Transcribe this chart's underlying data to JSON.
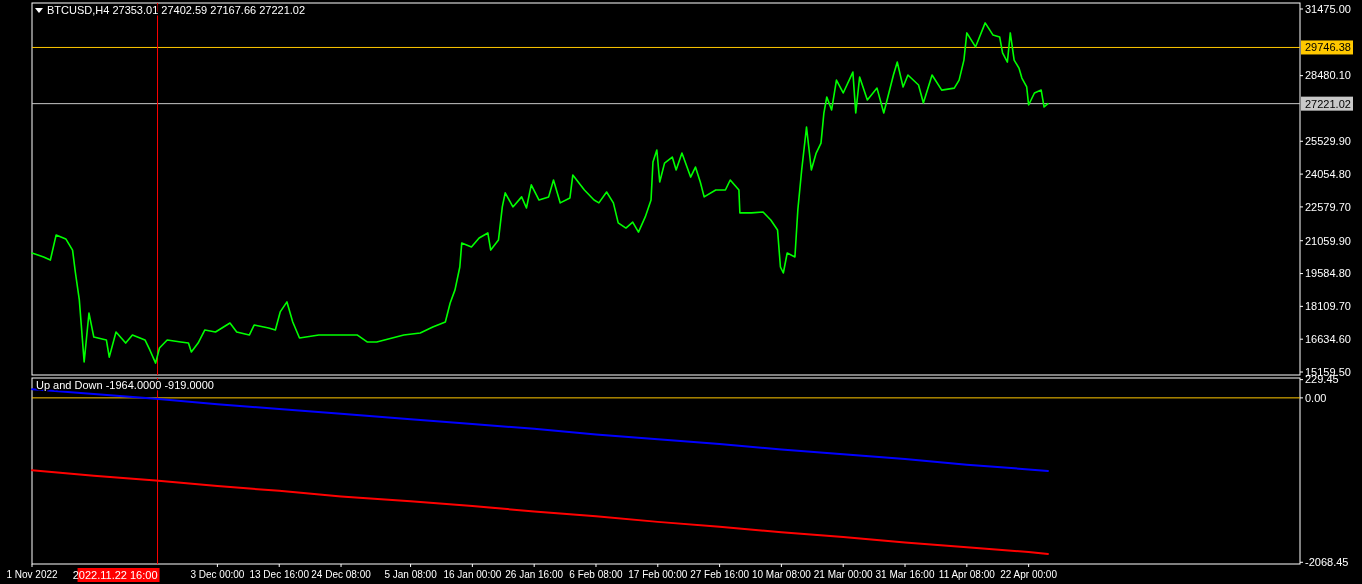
{
  "chart_data": [
    {
      "type": "line",
      "title": "BTCUSD,H4  27353.01 27402.59 27167.66 27221.02",
      "tick_labels": "y",
      "grid": false,
      "marker": "none",
      "line_style": "solid",
      "xlim": [
        "2022-11-01T00:00",
        "2023-06-07T20:00"
      ],
      "ylim": [
        15025,
        31745
      ],
      "yticks": [
        {
          "value": 31475,
          "label": "31475.00"
        },
        {
          "value": 28480.1,
          "label": "28480.10"
        },
        {
          "value": 25529.9,
          "label": "25529.90"
        },
        {
          "value": 24054.8,
          "label": "24054.80"
        },
        {
          "value": 22579.7,
          "label": "22579.70"
        },
        {
          "value": 21059.9,
          "label": "21059.90"
        },
        {
          "value": 19584.8,
          "label": "19584.80"
        },
        {
          "value": 18109.7,
          "label": "18109.70"
        },
        {
          "value": 16634.6,
          "label": "16634.60"
        },
        {
          "value": 15159.5,
          "label": "15159.50"
        }
      ],
      "ref_lines": [
        {
          "axis": "y",
          "value": 29746.38,
          "label": "29746.38",
          "color": "#ffc800"
        },
        {
          "axis": "y",
          "value": 27221.02,
          "label": "27221.02",
          "color": "#c8c8c8"
        },
        {
          "axis": "x",
          "value": "2022-11-22T16:00",
          "color": "#ff0000"
        }
      ],
      "series": [
        {
          "color": "#00ff00",
          "x": [
            "2022-11-01T00:00",
            "2022-11-03T00:00",
            "2022-11-04T04:00",
            "2022-11-05T04:00",
            "2022-11-06T20:00",
            "2022-11-08T00:00",
            "2022-11-08T12:00",
            "2022-11-09T04:00",
            "2022-11-10T00:00",
            "2022-11-10T20:00",
            "2022-11-11T16:00",
            "2022-11-13T20:00",
            "2022-11-14T08:00",
            "2022-11-15T12:00",
            "2022-11-17T04:00",
            "2022-11-18T08:00",
            "2022-11-20T12:00",
            "2022-11-21T08:00",
            "2022-11-22T08:00",
            "2022-11-23T00:00",
            "2022-11-24T08:00",
            "2022-11-26T16:00",
            "2022-11-28T00:00",
            "2022-11-28T12:00",
            "2022-11-29T16:00",
            "2022-11-30T20:00",
            "2022-12-02T16:00",
            "2022-12-05T04:00",
            "2022-12-06T08:00",
            "2022-12-08T12:00",
            "2022-12-09T08:00",
            "2022-12-11T20:00",
            "2022-12-13T00:00",
            "2022-12-13T20:00",
            "2022-12-15T00:00",
            "2022-12-16T00:00",
            "2022-12-17T04:00",
            "2022-12-20T12:00",
            "2022-12-23T20:00",
            "2022-12-27T04:00",
            "2022-12-28T20:00",
            "2022-12-30T12:00",
            "2023-01-04T04:00",
            "2023-01-07T00:00",
            "2023-01-09T04:00",
            "2023-01-11T08:00",
            "2023-01-12T04:00",
            "2023-01-13T00:00",
            "2023-01-13T20:00",
            "2023-01-14T04:00",
            "2023-01-15T20:00",
            "2023-01-17T04:00",
            "2023-01-18T16:00",
            "2023-01-19T04:00",
            "2023-01-20T12:00",
            "2023-01-21T04:00",
            "2023-01-21T16:00",
            "2023-01-23T00:00",
            "2023-01-24T12:00",
            "2023-01-25T08:00",
            "2023-01-26T04:00",
            "2023-01-27T12:00",
            "2023-01-29T04:00",
            "2023-01-30T00:00",
            "2023-01-31T04:00",
            "2023-02-01T20:00",
            "2023-02-02T08:00",
            "2023-02-04T08:00",
            "2023-02-06T00:00",
            "2023-02-06T20:00",
            "2023-02-08T04:00",
            "2023-02-09T08:00",
            "2023-02-10T04:00",
            "2023-02-11T12:00",
            "2023-02-12T16:00",
            "2023-02-13T16:00",
            "2023-02-14T20:00",
            "2023-02-15T20:00",
            "2023-02-16T04:00",
            "2023-02-16T20:00",
            "2023-02-17T08:00",
            "2023-02-18T04:00",
            "2023-02-19T12:00",
            "2023-02-20T04:00",
            "2023-02-21T04:00",
            "2023-02-22T16:00",
            "2023-02-23T12:00",
            "2023-02-24T08:00",
            "2023-02-25T00:00",
            "2023-02-27T00:00",
            "2023-02-28T16:00",
            "2023-03-01T12:00",
            "2023-03-03T00:00",
            "2023-03-03T04:00",
            "2023-03-05T04:00",
            "2023-03-07T04:00",
            "2023-03-08T12:00",
            "2023-03-09T16:00",
            "2023-03-10T04:00",
            "2023-03-10T16:00",
            "2023-03-11T08:00",
            "2023-03-12T16:00",
            "2023-03-13T04:00",
            "2023-03-13T20:00",
            "2023-03-14T16:00",
            "2023-03-15T12:00",
            "2023-03-16T08:00",
            "2023-03-17T04:00",
            "2023-03-17T16:00",
            "2023-03-18T04:00",
            "2023-03-19T00:00",
            "2023-03-19T20:00",
            "2023-03-21T00:00",
            "2023-03-22T16:00",
            "2023-03-23T04:00",
            "2023-03-23T20:00",
            "2023-03-25T04:00",
            "2023-03-26T20:00",
            "2023-03-28T00:00",
            "2023-03-29T16:00",
            "2023-03-30T08:00",
            "2023-03-31T08:00",
            "2023-04-01T04:00",
            "2023-04-03T00:00",
            "2023-04-03T20:00",
            "2023-04-05T08:00",
            "2023-04-07T00:00",
            "2023-04-09T04:00",
            "2023-04-10T00:00",
            "2023-04-10T20:00",
            "2023-04-11T08:00",
            "2023-04-12T20:00",
            "2023-04-14T12:00",
            "2023-04-15T20:00",
            "2023-04-17T00:00",
            "2023-04-17T12:00",
            "2023-04-18T08:00",
            "2023-04-18T20:00",
            "2023-04-19T12:00",
            "2023-04-20T08:00",
            "2023-04-20T20:00",
            "2023-04-21T16:00",
            "2023-04-22T00:00",
            "2023-04-23T00:00",
            "2023-04-24T04:00",
            "2023-04-24T16:00",
            "2023-04-25T08:00"
          ],
          "values": [
            20510,
            20330,
            20190,
            21320,
            21140,
            20640,
            19610,
            18400,
            15610,
            17810,
            16730,
            16600,
            15830,
            16960,
            16460,
            16820,
            16600,
            16150,
            15560,
            16240,
            16600,
            16510,
            16460,
            16060,
            16460,
            17050,
            16960,
            17360,
            16960,
            16820,
            17270,
            17140,
            17050,
            17860,
            18310,
            17410,
            16690,
            16820,
            16820,
            16820,
            16510,
            16510,
            16820,
            16910,
            17180,
            17410,
            18260,
            18850,
            19880,
            20960,
            20780,
            21180,
            21410,
            20640,
            21090,
            22580,
            23210,
            22580,
            23030,
            22530,
            23570,
            22890,
            23030,
            23790,
            22760,
            22980,
            24010,
            23340,
            22890,
            22760,
            23250,
            22760,
            21860,
            21630,
            21900,
            21450,
            22130,
            22890,
            24600,
            25140,
            23700,
            24550,
            24820,
            24240,
            25000,
            23920,
            24370,
            23700,
            23030,
            23340,
            23340,
            23790,
            23340,
            22310,
            22310,
            22350,
            21990,
            21540,
            19880,
            19610,
            20510,
            20330,
            22440,
            24240,
            26170,
            24240,
            25000,
            25450,
            26800,
            27520,
            26940,
            28280,
            27700,
            28640,
            26800,
            28420,
            27390,
            27920,
            26800,
            28510,
            29090,
            27970,
            28510,
            28060,
            27250,
            28510,
            27830,
            27920,
            28280,
            29180,
            30400,
            29770,
            30850,
            30310,
            30220,
            29500,
            29090,
            30400,
            29180,
            28820,
            28370,
            27970,
            27160,
            27700,
            27830,
            27070,
            27220
          ]
        }
      ]
    },
    {
      "type": "line",
      "title": "Up and Down -1964.0000 -919.0000",
      "grid": false,
      "marker": "none",
      "line_style": "solid",
      "xlim": [
        "2022-11-01T00:00",
        "2023-06-07T20:00"
      ],
      "xticks": [
        {
          "value": "2022-11-01T00:00",
          "label": "1 Nov 2022"
        },
        {
          "value": "2022-12-03T00:00",
          "label": "3 Dec 00:00"
        },
        {
          "value": "2022-12-13T16:00",
          "label": "13 Dec 16:00"
        },
        {
          "value": "2022-12-24T08:00",
          "label": "24 Dec 08:00"
        },
        {
          "value": "2023-01-05T08:00",
          "label": "5 Jan 08:00"
        },
        {
          "value": "2023-01-16T00:00",
          "label": "16 Jan 00:00"
        },
        {
          "value": "2023-01-26T16:00",
          "label": "26 Jan 16:00"
        },
        {
          "value": "2023-02-06T08:00",
          "label": "6 Feb 08:00"
        },
        {
          "value": "2023-02-17T00:00",
          "label": "17 Feb 00:00"
        },
        {
          "value": "2023-02-27T16:00",
          "label": "27 Feb 16:00"
        },
        {
          "value": "2023-03-10T08:00",
          "label": "10 Mar 08:00"
        },
        {
          "value": "2023-03-21T00:00",
          "label": "21 Mar 00:00"
        },
        {
          "value": "2023-03-31T16:00",
          "label": "31 Mar 16:00"
        },
        {
          "value": "2023-04-11T08:00",
          "label": "11 Apr 08:00"
        },
        {
          "value": "2023-04-22T00:00",
          "label": "22 Apr 00:00"
        }
      ],
      "ylim": [
        -2090,
        250
      ],
      "yticks": [
        {
          "value": 229.45,
          "label": "229.45"
        },
        {
          "value": 0,
          "label": "0.00"
        },
        {
          "value": -2068.45,
          "label": "-2068.45"
        }
      ],
      "ref_lines": [
        {
          "axis": "y",
          "value": 0,
          "color": "#ffc800"
        },
        {
          "axis": "x",
          "value": "2022-11-22T16:00",
          "label": "2022.11.22 16:00",
          "color": "#ff0000"
        }
      ],
      "series": [
        {
          "color": "#0000ff",
          "x": [
            "2022-11-01T00:00",
            "2022-11-11T16:00",
            "2022-11-22T08:00",
            "2022-12-03T00:00",
            "2022-12-13T16:00",
            "2022-12-24T08:00",
            "2023-01-05T08:00",
            "2023-01-16T00:00",
            "2023-01-26T16:00",
            "2023-02-06T08:00",
            "2023-02-17T00:00",
            "2023-02-27T16:00",
            "2023-03-10T08:00",
            "2023-03-21T00:00",
            "2023-03-31T16:00",
            "2023-04-11T08:00",
            "2023-04-22T00:00",
            "2023-04-25T08:00"
          ],
          "values": [
            110,
            50,
            -10,
            -80,
            -140,
            -200,
            -270,
            -330,
            -390,
            -460,
            -520,
            -580,
            -650,
            -710,
            -770,
            -840,
            -900,
            -919
          ]
        },
        {
          "color": "#ff0000",
          "x": [
            "2022-11-01T00:00",
            "2022-11-11T16:00",
            "2022-11-22T08:00",
            "2022-12-03T00:00",
            "2022-12-13T16:00",
            "2022-12-24T08:00",
            "2023-01-05T08:00",
            "2023-01-16T00:00",
            "2023-01-26T16:00",
            "2023-02-06T08:00",
            "2023-02-17T00:00",
            "2023-02-27T16:00",
            "2023-03-10T08:00",
            "2023-03-21T00:00",
            "2023-03-31T16:00",
            "2023-04-11T08:00",
            "2023-04-22T00:00",
            "2023-04-25T08:00"
          ],
          "values": [
            -910,
            -980,
            -1040,
            -1110,
            -1170,
            -1240,
            -1300,
            -1360,
            -1430,
            -1490,
            -1560,
            -1620,
            -1690,
            -1750,
            -1820,
            -1880,
            -1940,
            -1964
          ]
        }
      ]
    }
  ]
}
